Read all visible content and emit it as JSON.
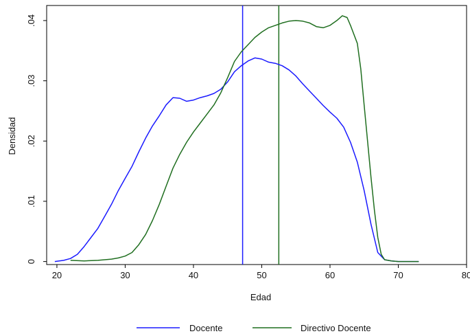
{
  "chart_data": {
    "type": "line",
    "xlabel": "Edad",
    "ylabel": "Densidad",
    "xlim": [
      18.5,
      80
    ],
    "ylim": [
      -0.0005,
      0.0425
    ],
    "xticks": [
      20,
      30,
      40,
      50,
      60,
      70,
      80
    ],
    "yticks": [
      0,
      0.01,
      0.02,
      0.03,
      0.04
    ],
    "xtick_labels": [
      "20",
      "30",
      "40",
      "50",
      "60",
      "70",
      "80"
    ],
    "ytick_labels": [
      "0",
      ".01",
      ".02",
      ".03",
      ".04"
    ],
    "grid": false,
    "legend_position": "bottom",
    "series": [
      {
        "name": "Docente",
        "color": "#1a1aff",
        "x": [
          19.7,
          21,
          22,
          23,
          24,
          25,
          26,
          27,
          28,
          29,
          30,
          31,
          32,
          33,
          34,
          35,
          36,
          37,
          38,
          39,
          40,
          41,
          42,
          43,
          44,
          45,
          46,
          47,
          48,
          49,
          50,
          51,
          52,
          53,
          54,
          55,
          56,
          57,
          58,
          59,
          60,
          61,
          62,
          63,
          64,
          65,
          66,
          67,
          68,
          69,
          70,
          73
        ],
        "y": [
          0,
          0.0002,
          0.0005,
          0.0012,
          0.0025,
          0.004,
          0.0055,
          0.0075,
          0.0095,
          0.0118,
          0.0138,
          0.0158,
          0.0182,
          0.0205,
          0.0225,
          0.0242,
          0.026,
          0.0272,
          0.0271,
          0.0266,
          0.0268,
          0.0272,
          0.0275,
          0.0279,
          0.0286,
          0.0298,
          0.0315,
          0.0325,
          0.0333,
          0.0338,
          0.0336,
          0.0331,
          0.0329,
          0.0325,
          0.0318,
          0.0308,
          0.0295,
          0.0283,
          0.0271,
          0.0259,
          0.0248,
          0.0238,
          0.0223,
          0.0198,
          0.0165,
          0.0118,
          0.0062,
          0.0015,
          0.0003,
          0.0001,
          0,
          0
        ]
      },
      {
        "name": "Directivo Docente",
        "color": "#1f6e1f",
        "x": [
          22,
          24,
          26,
          28,
          29,
          30,
          31,
          32,
          33,
          34,
          35,
          36,
          37,
          38,
          39,
          40,
          41,
          42,
          43,
          44,
          45,
          46,
          47,
          48,
          49,
          50,
          51,
          52,
          53,
          54,
          55,
          56,
          57,
          58,
          59,
          60,
          61,
          61.8,
          62.5,
          63,
          64,
          64.5,
          65,
          65.5,
          66,
          66.5,
          67,
          67.5,
          68,
          69,
          70,
          73
        ],
        "y": [
          0.0002,
          0.0001,
          0.0002,
          0.0004,
          0.0006,
          0.0009,
          0.0015,
          0.0028,
          0.0045,
          0.0068,
          0.0095,
          0.0125,
          0.0155,
          0.0178,
          0.0198,
          0.0215,
          0.023,
          0.0245,
          0.026,
          0.028,
          0.0305,
          0.0332,
          0.0348,
          0.036,
          0.0372,
          0.0381,
          0.0388,
          0.0392,
          0.0396,
          0.0399,
          0.04,
          0.0399,
          0.0396,
          0.039,
          0.0388,
          0.0392,
          0.04,
          0.0408,
          0.0405,
          0.0392,
          0.0362,
          0.032,
          0.026,
          0.02,
          0.014,
          0.0085,
          0.004,
          0.0012,
          0.0003,
          0.0001,
          0,
          0
        ]
      }
    ],
    "vlines": [
      {
        "x": 47.2,
        "color": "#1a1aff",
        "series": "Docente"
      },
      {
        "x": 52.5,
        "color": "#1f6e1f",
        "series": "Directivo Docente"
      }
    ]
  }
}
